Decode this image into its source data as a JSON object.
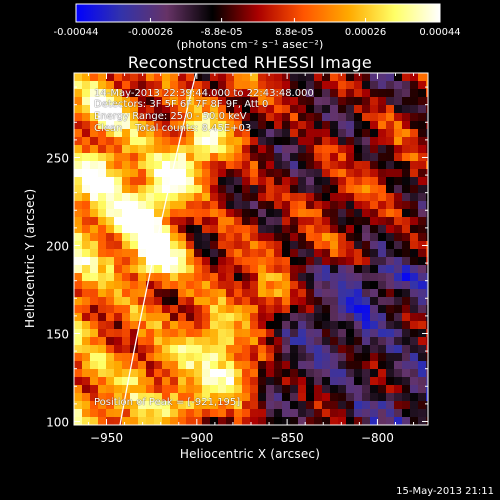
{
  "title": "Reconstructed RHESSI Image",
  "colorbar": {
    "ticks": [
      "-0.00044",
      "-0.00026",
      "-8.8e-05",
      "8.8e-05",
      "0.00026",
      "0.00044"
    ],
    "tick_values": [
      -0.00044,
      -0.00026,
      -8.8e-05,
      8.8e-05,
      0.00026,
      0.00044
    ],
    "range": [
      -0.00044,
      0.00044
    ],
    "units_label": "(photons cm⁻² s⁻¹ asec⁻²)"
  },
  "annotations": {
    "time": "14-May-2013 22:39:44.000 to 22:43:48.000",
    "detectors": "Detectors: 3F 5F 6F 7F 8F 9F, Att 0",
    "energy": "Energy Range: 25.0 - 50.0 keV",
    "clean": "Clean    Total counts: 8.45E+03",
    "peak": "Position of Peak = [-921,195]"
  },
  "footer": "15-May-2013 21:11",
  "chart_data": {
    "type": "heatmap",
    "title": "Reconstructed RHESSI Image",
    "xlabel": "Heliocentric X (arcsec)",
    "ylabel": "Heliocentric Y (arcsec)",
    "xlim": [
      -968,
      -772
    ],
    "ylim": [
      98,
      298
    ],
    "x_ticks": [
      -950,
      -900,
      -850,
      -800
    ],
    "y_ticks": [
      100,
      150,
      200,
      250
    ],
    "x_tick_labels": [
      "−950",
      "−900",
      "−850",
      "−800"
    ],
    "y_tick_labels": [
      "100",
      "150",
      "200",
      "250"
    ],
    "peak_position": [
      -921,
      195
    ],
    "colormap": [
      "#0000ff",
      "#3333aa",
      "#663366",
      "#000000",
      "#aa0000",
      "#ff5500",
      "#ffaa00",
      "#ffff66",
      "#ffffff"
    ]
  }
}
